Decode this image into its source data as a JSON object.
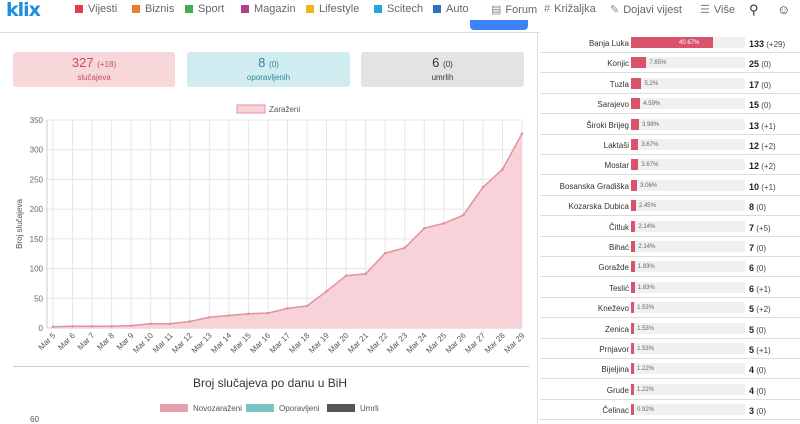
{
  "logo": "klix",
  "nav": {
    "items": [
      {
        "label": "Vijesti",
        "color": "#e03c4e"
      },
      {
        "label": "Biznis",
        "color": "#ef7b2d"
      },
      {
        "label": "Sport",
        "color": "#3cae4c"
      },
      {
        "label": "Magazin",
        "color": "#b13f8e"
      },
      {
        "label": "Lifestyle",
        "color": "#f2b31c"
      },
      {
        "label": "Scitech",
        "color": "#29a3de"
      },
      {
        "label": "Auto",
        "color": "#2f6fbf"
      }
    ],
    "extra": [
      {
        "label": "Forum",
        "icon": "forum-icon",
        "glyph": "▤"
      },
      {
        "label": "Križaljka",
        "icon": "crossword-icon",
        "glyph": "#"
      },
      {
        "label": "Dojavi vijest",
        "icon": "report-icon",
        "glyph": "✎"
      },
      {
        "label": "Više",
        "icon": "menu-icon",
        "glyph": "☰"
      }
    ]
  },
  "stats": {
    "cases": {
      "value": "327",
      "delta": "(+18)",
      "label": "slučajeva"
    },
    "recovered": {
      "value": "8",
      "delta": "(0)",
      "label": "oporavljenih"
    },
    "deaths": {
      "value": "6",
      "delta": "(0)",
      "label": "umrlih"
    }
  },
  "chart_data": [
    {
      "type": "area",
      "legend": [
        "Zaraženi"
      ],
      "ylabel": "Broj slučajeva",
      "ylim": [
        0,
        350
      ],
      "yticks": [
        0,
        50,
        100,
        150,
        200,
        250,
        300,
        350
      ],
      "grid": true,
      "legend_placement": "top",
      "color": "#e5909f",
      "fill": "#f7d3d9",
      "categories": [
        "Mar 5",
        "Mar 6",
        "Mar 7",
        "Mar 8",
        "Mar 9",
        "Mar 10",
        "Mar 11",
        "Mar 12",
        "Mar 13",
        "Mar 14",
        "Mar 15",
        "Mar 16",
        "Mar 17",
        "Mar 18",
        "Mar 19",
        "Mar 20",
        "Mar 21",
        "Mar 22",
        "Mar 23",
        "Mar 24",
        "Mar 25",
        "Mar 26",
        "Mar 27",
        "Mar 28",
        "Mar 29"
      ],
      "series": [
        {
          "name": "Zaraženi",
          "values": [
            2,
            3,
            3,
            3,
            4,
            7,
            7,
            11,
            18,
            21,
            24,
            25,
            33,
            37,
            62,
            88,
            91,
            126,
            135,
            168,
            176,
            190,
            237,
            267,
            327
          ]
        }
      ]
    },
    {
      "type": "bar",
      "title": "Broj slučajeva po danu u BiH",
      "legend": [
        {
          "name": "Novozaraženi",
          "color": "#e5a0ad"
        },
        {
          "name": "Oporavljeni",
          "color": "#7cc4c4"
        },
        {
          "name": "Umrli",
          "color": "#555555"
        }
      ],
      "yticks_visible": [
        "60"
      ]
    }
  ],
  "table": {
    "rows": [
      {
        "city": "Banja Luka",
        "pct": 40.67,
        "pct_label": "40.67%",
        "count": "133",
        "delta": "(+29)"
      },
      {
        "city": "Konjic",
        "pct": 7.65,
        "pct_label": "7.65%",
        "count": "25",
        "delta": "(0)"
      },
      {
        "city": "Tuzla",
        "pct": 5.2,
        "pct_label": "5.2%",
        "count": "17",
        "delta": "(0)"
      },
      {
        "city": "Sarajevo",
        "pct": 4.59,
        "pct_label": "4.59%",
        "count": "15",
        "delta": "(0)"
      },
      {
        "city": "Široki Brijeg",
        "pct": 3.98,
        "pct_label": "3.98%",
        "count": "13",
        "delta": "(+1)"
      },
      {
        "city": "Laktaši",
        "pct": 3.67,
        "pct_label": "3.67%",
        "count": "12",
        "delta": "(+2)"
      },
      {
        "city": "Mostar",
        "pct": 3.67,
        "pct_label": "3.67%",
        "count": "12",
        "delta": "(+2)"
      },
      {
        "city": "Bosanska Gradiška",
        "pct": 3.06,
        "pct_label": "3.06%",
        "count": "10",
        "delta": "(+1)"
      },
      {
        "city": "Kozarska Dubica",
        "pct": 2.45,
        "pct_label": "2.45%",
        "count": "8",
        "delta": "(0)"
      },
      {
        "city": "Čitluk",
        "pct": 2.14,
        "pct_label": "2.14%",
        "count": "7",
        "delta": "(+5)"
      },
      {
        "city": "Bihać",
        "pct": 2.14,
        "pct_label": "2.14%",
        "count": "7",
        "delta": "(0)"
      },
      {
        "city": "Goražde",
        "pct": 1.83,
        "pct_label": "1.83%",
        "count": "6",
        "delta": "(0)"
      },
      {
        "city": "Teslić",
        "pct": 1.83,
        "pct_label": "1.83%",
        "count": "6",
        "delta": "(+1)"
      },
      {
        "city": "Kneževo",
        "pct": 1.53,
        "pct_label": "1.53%",
        "count": "5",
        "delta": "(+2)"
      },
      {
        "city": "Zenica",
        "pct": 1.53,
        "pct_label": "1.53%",
        "count": "5",
        "delta": "(0)"
      },
      {
        "city": "Prnjavor",
        "pct": 1.53,
        "pct_label": "1.53%",
        "count": "5",
        "delta": "(+1)"
      },
      {
        "city": "Bijeljina",
        "pct": 1.22,
        "pct_label": "1.22%",
        "count": "4",
        "delta": "(0)"
      },
      {
        "city": "Grude",
        "pct": 1.22,
        "pct_label": "1.22%",
        "count": "4",
        "delta": "(0)"
      },
      {
        "city": "Čelinac",
        "pct": 0.92,
        "pct_label": "0.92%",
        "count": "3",
        "delta": "(0)"
      }
    ]
  }
}
